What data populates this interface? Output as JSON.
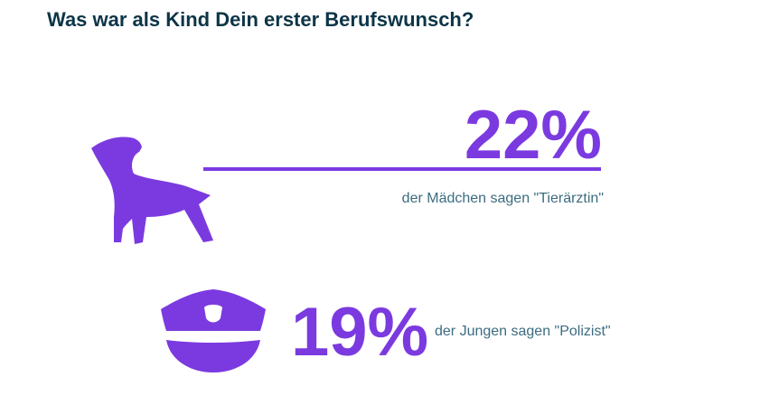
{
  "title": "Was war als Kind Dein erster Berufswunsch?",
  "colors": {
    "accent": "#7b3ae0",
    "title": "#0d3547",
    "caption": "#3c6c80"
  },
  "chart_data": {
    "type": "infographic",
    "title": "Was war als Kind Dein erster Berufswunsch?",
    "items": [
      {
        "value_label": "22%",
        "value": 22,
        "caption": "der Mädchen sagen \"Tierärztin\"",
        "icon": "dog-icon"
      },
      {
        "value_label": "19%",
        "value": 19,
        "caption": "der Jungen sagen \"Polizist\"",
        "icon": "police-cap-icon"
      }
    ]
  }
}
